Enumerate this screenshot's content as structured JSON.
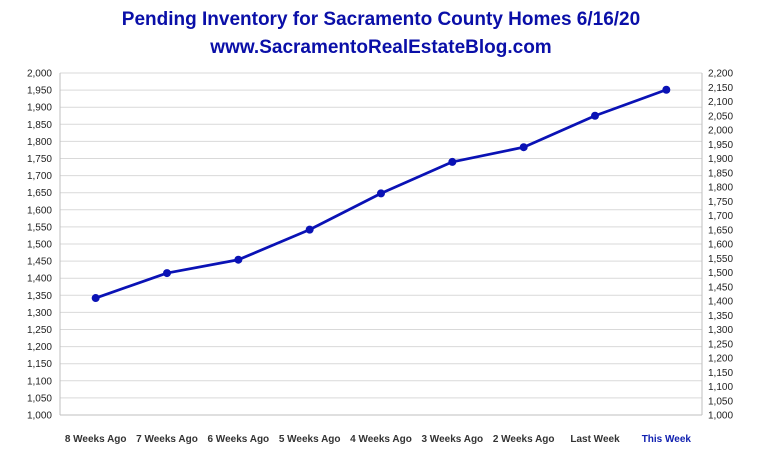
{
  "chart_data": {
    "type": "line",
    "title": "Pending Inventory for Sacramento County Homes 6/16/20",
    "subtitle": "www.SacramentoRealEstateBlog.com",
    "categories": [
      "8 Weeks Ago",
      "7 Weeks Ago",
      "6 Weeks Ago",
      "5 Weeks Ago",
      "4 Weeks Ago",
      "3 Weeks Ago",
      "2 Weeks Ago",
      "Last Week",
      "This Week"
    ],
    "highlight_category": "This Week",
    "series": [
      {
        "values": [
          1342,
          1415,
          1454,
          1542,
          1648,
          1740,
          1783,
          1875,
          1951
        ],
        "color": "#0a12b5"
      }
    ],
    "ylim": [
      1000,
      2000
    ],
    "y_ticks": [
      "1,000",
      "1,050",
      "1,100",
      "1,150",
      "1,200",
      "1,250",
      "1,300",
      "1,350",
      "1,400",
      "1,450",
      "1,500",
      "1,550",
      "1,600",
      "1,650",
      "1,700",
      "1,750",
      "1,800",
      "1,850",
      "1,900",
      "1,950",
      "2,000"
    ],
    "y2lim": [
      1000,
      2200
    ],
    "y2_ticks": [
      "1,000",
      "1,050",
      "1,100",
      "1,150",
      "1,200",
      "1,250",
      "1,300",
      "1,350",
      "1,400",
      "1,450",
      "1,500",
      "1,550",
      "1,600",
      "1,650",
      "1,700",
      "1,750",
      "1,800",
      "1,850",
      "1,900",
      "1,950",
      "2,000",
      "2,050",
      "2,100",
      "2,150",
      "2,200"
    ],
    "grid": true,
    "legend": "none",
    "xlabel": "",
    "ylabel": ""
  }
}
